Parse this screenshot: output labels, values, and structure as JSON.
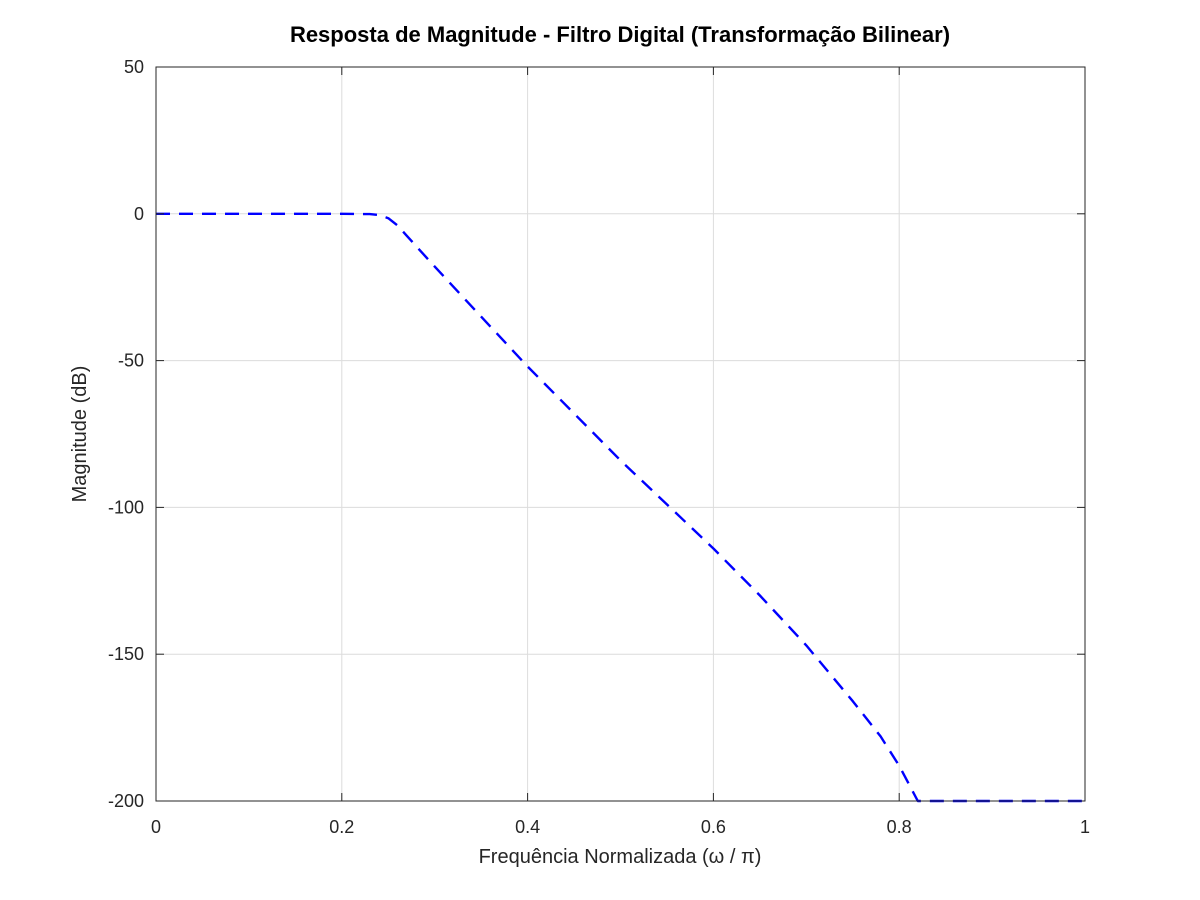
{
  "chart_data": {
    "type": "line",
    "title": "Resposta de Magnitude - Filtro Digital (Transformação Bilinear)",
    "xlabel": "Frequência Normalizada (ω / π)",
    "ylabel": "Magnitude (dB)",
    "xlim": [
      0,
      1
    ],
    "ylim": [
      -200,
      50
    ],
    "xticks": [
      0,
      0.2,
      0.4,
      0.6,
      0.8,
      1
    ],
    "xtick_labels": [
      "0",
      "0.2",
      "0.4",
      "0.6",
      "0.8",
      "1"
    ],
    "yticks": [
      50,
      0,
      -50,
      -100,
      -150,
      -200
    ],
    "ytick_labels": [
      "50",
      "0",
      "-50",
      "-100",
      "-150",
      "-200"
    ],
    "grid": true,
    "legend": "none",
    "series": [
      {
        "color": "#0000ff",
        "style": "dashed",
        "x": [
          0,
          0.05,
          0.1,
          0.15,
          0.2,
          0.23,
          0.24,
          0.25,
          0.26,
          0.27,
          0.28,
          0.3,
          0.35,
          0.4,
          0.45,
          0.5,
          0.55,
          0.6,
          0.65,
          0.7,
          0.75,
          0.78,
          0.8,
          0.82,
          0.85,
          0.9,
          0.95,
          1.0
        ],
        "y": [
          0,
          0,
          0,
          0,
          0,
          -0.1,
          -0.4,
          -1.5,
          -4,
          -7.5,
          -11,
          -18,
          -35,
          -52,
          -68,
          -84,
          -99,
          -114,
          -130,
          -147,
          -166,
          -178,
          -188,
          -200,
          -200,
          -200,
          -200,
          -200
        ]
      }
    ]
  }
}
